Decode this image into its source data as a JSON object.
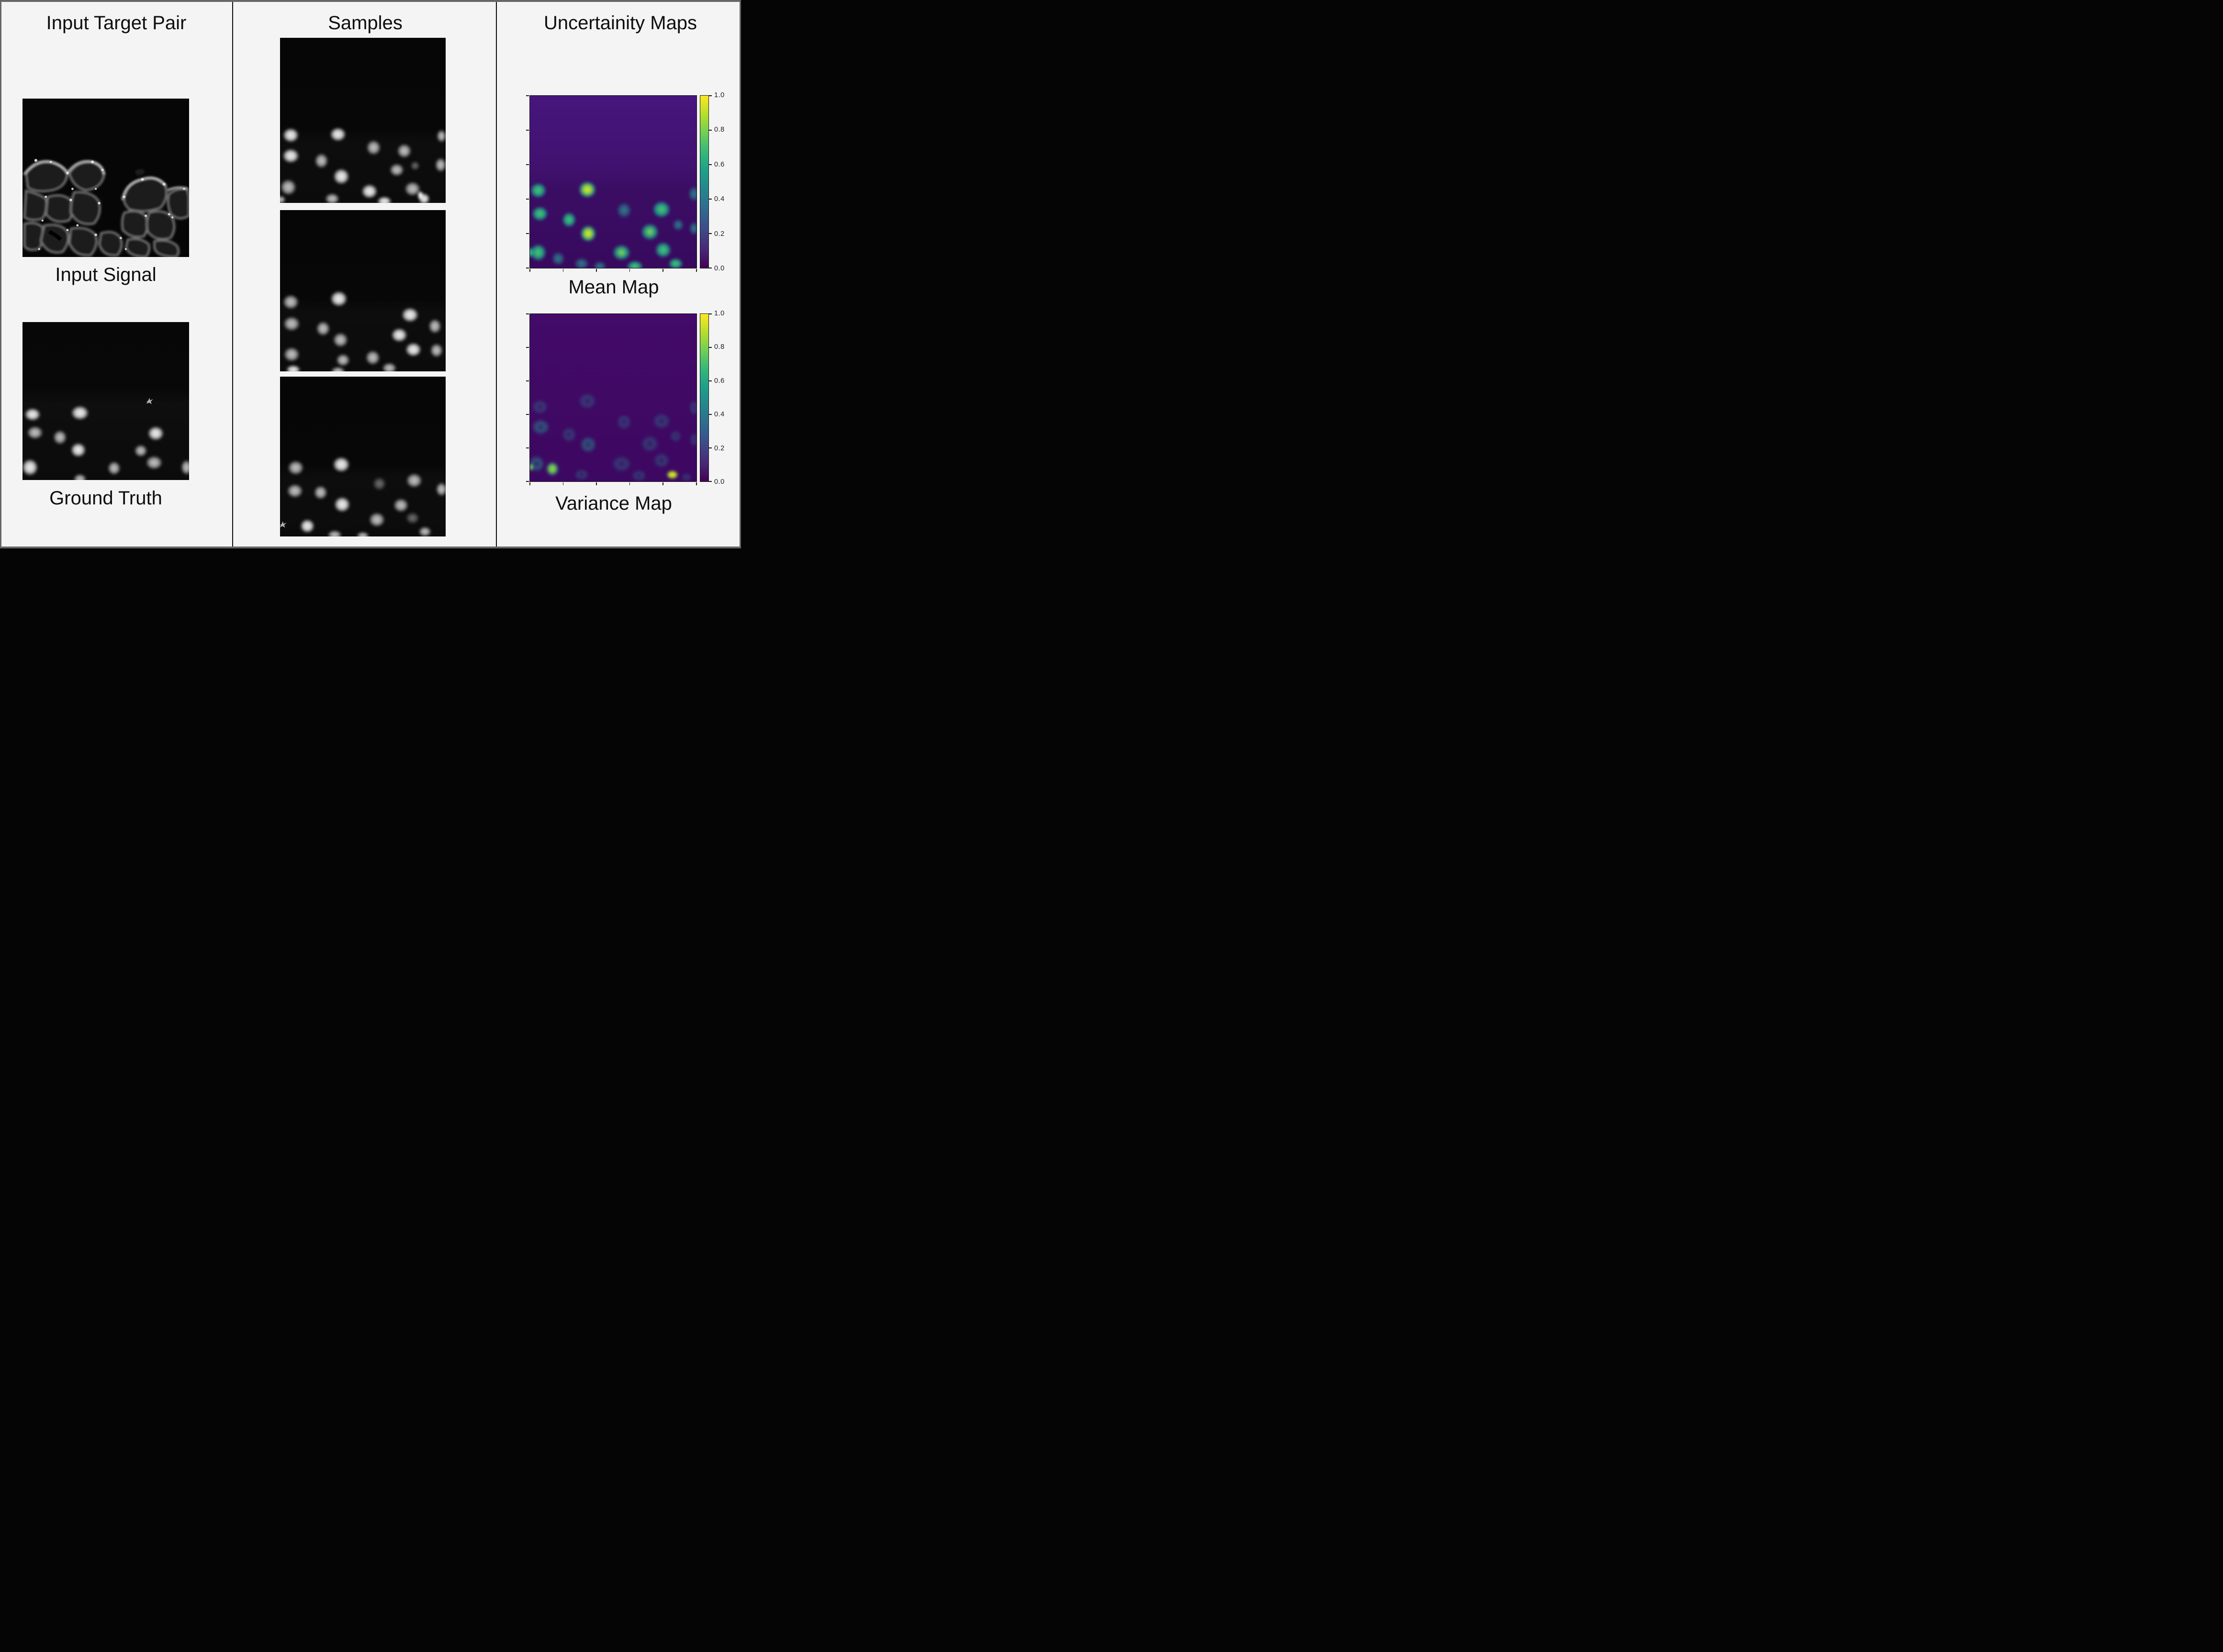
{
  "meta": {
    "background": "#f4f4f4",
    "frame_color": "#666666",
    "divider_color": "#0c0c0c",
    "text_color": "#0e0e0e"
  },
  "columns": [
    {
      "title": "Input Target Pair"
    },
    {
      "title": "Samples"
    },
    {
      "title": "Uncertainity Maps"
    }
  ],
  "labels": {
    "input_signal": "Input Signal",
    "ground_truth": "Ground Truth",
    "mean_map": "Mean Map",
    "variance_map": "Variance Map"
  },
  "colorbar": {
    "colormap": "viridis",
    "min": 0.0,
    "max": 1.0,
    "ticks": [
      "1.0",
      "0.8",
      "0.6",
      "0.4",
      "0.2",
      "0.0"
    ]
  },
  "chart_data": [
    {
      "type": "heatmap",
      "title": "Mean Map",
      "colormap": "viridis",
      "zlim": [
        0.0,
        1.0
      ],
      "colorbar_ticks": [
        1.0,
        0.8,
        0.6,
        0.4,
        0.2,
        0.0
      ],
      "legend_position": "right",
      "grid": false,
      "description": "Per-pixel mean of generated nuclei samples; background ~0.05-0.1, nuclei blobs in lower half ~0.4-0.9 with two yellow peaks near 0.9"
    },
    {
      "type": "heatmap",
      "title": "Variance Map",
      "colormap": "viridis",
      "zlim": [
        0.0,
        1.0
      ],
      "colorbar_ticks": [
        1.0,
        0.8,
        0.6,
        0.4,
        0.2,
        0.0
      ],
      "legend_position": "right",
      "grid": false,
      "description": "Per-pixel variance; background ~0.02, faint nuclei outlines ~0.1-0.3, two bright hotspots ~0.7-1.0 at bottom"
    }
  ],
  "figures": {
    "ground_truth": {
      "kind": "grayscale-nuclei-micrograph",
      "bg": [
        [
          0,
          "#070707"
        ],
        [
          0.42,
          "#080808"
        ],
        [
          0.52,
          "#0e0e0e"
        ],
        [
          1,
          "#0b0b0b"
        ]
      ],
      "blobs": [
        [
          6,
          58.5,
          5,
          4.2,
          "b"
        ],
        [
          34.5,
          57.5,
          5.5,
          4.7,
          "b"
        ],
        [
          7.5,
          70,
          5,
          4.3,
          "n"
        ],
        [
          22.5,
          73,
          4.2,
          4.7,
          "n"
        ],
        [
          33.5,
          81,
          4.7,
          4.7,
          "b"
        ],
        [
          80,
          70.5,
          5,
          4.7,
          "b"
        ],
        [
          71,
          81.5,
          4,
          4,
          "n"
        ],
        [
          79,
          89,
          5.2,
          4.5,
          "n"
        ],
        [
          55,
          92.5,
          4,
          4.5,
          "n"
        ],
        [
          4.5,
          92,
          5,
          5.5,
          "b"
        ],
        [
          98.5,
          92,
          3.5,
          5,
          "n"
        ],
        [
          34.5,
          99.5,
          4,
          3.5,
          "n"
        ]
      ],
      "sparkle": [
        76,
        50
      ]
    },
    "sample_1": {
      "kind": "grayscale-nuclei-micrograph",
      "bg": [
        [
          0,
          "#060606"
        ],
        [
          0.55,
          "#070707"
        ],
        [
          0.63,
          "#0d0d0d"
        ],
        [
          1,
          "#0b0b0b"
        ]
      ],
      "blobs": [
        [
          6.5,
          59,
          5,
          4.5,
          "b"
        ],
        [
          35,
          58.5,
          5,
          4.3,
          "b"
        ],
        [
          6.5,
          71.5,
          5.2,
          4.5,
          "b"
        ],
        [
          25,
          74.5,
          4.2,
          4.7,
          "n"
        ],
        [
          37,
          84,
          5,
          5,
          "b"
        ],
        [
          56.5,
          66.5,
          4.5,
          4.7,
          "n"
        ],
        [
          75,
          68.5,
          4.5,
          4.5,
          "n"
        ],
        [
          97.5,
          59.5,
          3,
          4,
          "n"
        ],
        [
          70.5,
          80,
          4.5,
          4,
          "n"
        ],
        [
          81.5,
          77.5,
          3,
          3,
          "d"
        ],
        [
          97,
          77,
          3.5,
          4.5,
          "n"
        ],
        [
          5,
          90.5,
          5,
          5,
          "n"
        ],
        [
          54,
          93,
          5,
          4.5,
          "b"
        ],
        [
          80,
          91.5,
          5,
          4.5,
          "n"
        ],
        [
          31.5,
          97.5,
          4.5,
          3.5,
          "n"
        ],
        [
          63,
          99,
          4.5,
          3,
          "b"
        ],
        [
          87,
          97.5,
          3.5,
          3.5,
          "b"
        ],
        [
          84.8,
          95.5,
          1.8,
          2.8,
          "h"
        ],
        [
          0.5,
          98,
          3,
          2.5,
          "n"
        ]
      ],
      "sparkle": null
    },
    "sample_2": {
      "kind": "grayscale-nuclei-micrograph",
      "bg": [
        [
          0,
          "#060606"
        ],
        [
          0.55,
          "#070707"
        ],
        [
          0.63,
          "#0d0d0d"
        ],
        [
          1,
          "#0b0b0b"
        ]
      ],
      "blobs": [
        [
          6.5,
          57,
          5,
          4.7,
          "n"
        ],
        [
          35.5,
          55,
          5.3,
          5,
          "b"
        ],
        [
          7,
          70.5,
          5.2,
          4.7,
          "n"
        ],
        [
          26,
          73.5,
          4.3,
          4.7,
          "n"
        ],
        [
          36.5,
          80.5,
          4.7,
          4.7,
          "n"
        ],
        [
          78.5,
          65,
          5.3,
          4.7,
          "b"
        ],
        [
          72,
          77.5,
          5,
          4.5,
          "b"
        ],
        [
          93.5,
          72,
          4,
          4.7,
          "n"
        ],
        [
          80.5,
          86.5,
          5,
          4.5,
          "b"
        ],
        [
          94.5,
          87,
          4,
          4.5,
          "n"
        ],
        [
          7,
          89.5,
          5,
          4.7,
          "n"
        ],
        [
          38,
          93,
          4.3,
          4,
          "n"
        ],
        [
          56,
          91.5,
          4.5,
          4.7,
          "n"
        ],
        [
          66,
          98,
          4.5,
          3.5,
          "n"
        ],
        [
          35,
          100,
          4.5,
          3,
          "n"
        ],
        [
          8,
          99,
          4.5,
          3,
          "b"
        ]
      ],
      "sparkle": null
    },
    "sample_3": {
      "kind": "grayscale-nuclei-micrograph",
      "bg": [
        [
          0,
          "#060606"
        ],
        [
          0.55,
          "#070707"
        ],
        [
          0.63,
          "#0d0d0d"
        ],
        [
          1,
          "#0b0b0b"
        ]
      ],
      "blobs": [
        [
          9.5,
          57,
          5,
          4.7,
          "n"
        ],
        [
          37,
          55,
          5.3,
          5,
          "b"
        ],
        [
          9,
          71.5,
          5,
          4.5,
          "n"
        ],
        [
          24.5,
          72.5,
          4.2,
          4.5,
          "n"
        ],
        [
          37.5,
          80,
          5,
          5,
          "b"
        ],
        [
          60,
          67,
          4.3,
          4.5,
          "d"
        ],
        [
          81,
          65,
          5,
          4.7,
          "n"
        ],
        [
          97.5,
          70.5,
          3.5,
          4.5,
          "n"
        ],
        [
          73,
          80.5,
          4.7,
          4.5,
          "n"
        ],
        [
          58.5,
          89.5,
          5,
          4.7,
          "n"
        ],
        [
          80,
          88.5,
          4.5,
          4,
          "d"
        ],
        [
          16.5,
          93.5,
          4.5,
          4.5,
          "b"
        ],
        [
          33,
          99,
          4.5,
          3,
          "n"
        ],
        [
          87.5,
          97,
          4,
          3.3,
          "n"
        ],
        [
          50,
          99.5,
          4,
          2.5,
          "n"
        ]
      ],
      "sparkle": [
        1.5,
        92.5
      ]
    },
    "mean_map": {
      "kind": "viridis-heatmap",
      "bg": [
        [
          0,
          "#46167d"
        ],
        [
          0.4,
          "#411270"
        ],
        [
          0.55,
          "#3a0d63"
        ],
        [
          1,
          "#380a5e"
        ]
      ],
      "blobs": [
        [
          5,
          55,
          5,
          4.5,
          "g"
        ],
        [
          34.5,
          54.5,
          5.5,
          5,
          "y"
        ],
        [
          6,
          68.5,
          5,
          4.3,
          "g"
        ],
        [
          23.5,
          72,
          4.3,
          4.5,
          "g"
        ],
        [
          35,
          80,
          5,
          5,
          "y"
        ],
        [
          56.5,
          66.5,
          4.5,
          4.7,
          "t"
        ],
        [
          79,
          66,
          5.5,
          5,
          "g"
        ],
        [
          98.5,
          57,
          3.5,
          4.5,
          "t"
        ],
        [
          72,
          79,
          5.5,
          5,
          "g2"
        ],
        [
          89,
          75,
          3.5,
          3.5,
          "t"
        ],
        [
          98.5,
          77,
          3,
          4,
          "t"
        ],
        [
          5,
          91,
          5,
          5,
          "g"
        ],
        [
          17,
          94.5,
          4,
          4,
          "t"
        ],
        [
          55,
          91,
          5.5,
          4.7,
          "g2"
        ],
        [
          80,
          89.5,
          5,
          4.7,
          "g"
        ],
        [
          31,
          97.5,
          4.5,
          3.5,
          "t"
        ],
        [
          63,
          99,
          5,
          3.3,
          "g"
        ],
        [
          87.5,
          97.5,
          4.5,
          3.3,
          "g"
        ],
        [
          0.5,
          91,
          2,
          3,
          "g"
        ],
        [
          42,
          99,
          4,
          3,
          "t"
        ]
      ],
      "sparkle": null
    },
    "variance_map": {
      "kind": "viridis-heatmap",
      "bg": [
        [
          0,
          "#430a68"
        ],
        [
          0.5,
          "#400964"
        ],
        [
          1,
          "#3d0861"
        ]
      ],
      "blobs": [
        [
          6,
          55.5,
          5,
          4.5,
          "r"
        ],
        [
          34.5,
          52,
          5.5,
          5,
          "r"
        ],
        [
          6.5,
          67.5,
          5.5,
          4.7,
          "R"
        ],
        [
          23.5,
          72,
          4.5,
          4.7,
          "r"
        ],
        [
          35,
          78,
          5,
          5,
          "R"
        ],
        [
          56.5,
          64.5,
          4.5,
          4.7,
          "r"
        ],
        [
          79,
          64,
          5.5,
          5,
          "r"
        ],
        [
          98.5,
          56,
          3,
          4.5,
          "r"
        ],
        [
          72,
          77.5,
          5.5,
          5.2,
          "r"
        ],
        [
          87.5,
          73,
          3.5,
          3.5,
          "r"
        ],
        [
          98.5,
          75,
          2.5,
          4,
          "r"
        ],
        [
          4,
          89.5,
          5,
          5,
          "R"
        ],
        [
          13.5,
          92.5,
          4.2,
          4.5,
          "vg"
        ],
        [
          55,
          89.5,
          6,
          5,
          "r"
        ],
        [
          79,
          87.5,
          5,
          4.7,
          "r"
        ],
        [
          65.5,
          96.5,
          4.5,
          3.5,
          "r"
        ],
        [
          85.5,
          96,
          3.8,
          2.8,
          "vy"
        ],
        [
          31,
          96,
          4.5,
          3.5,
          "r"
        ],
        [
          0.8,
          91.5,
          1.5,
          2.5,
          "vg"
        ],
        [
          94,
          97.5,
          3,
          2.5,
          "r"
        ]
      ],
      "sparkle": null
    }
  }
}
